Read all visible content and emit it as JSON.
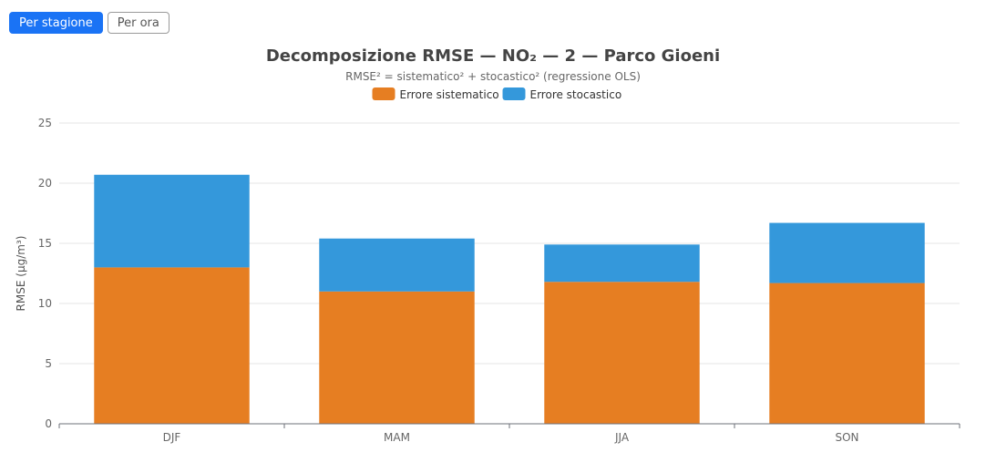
{
  "toggles": [
    {
      "label": "Per stagione",
      "active": true
    },
    {
      "label": "Per ora",
      "active": false
    }
  ],
  "colors": {
    "systematic": "#e67e22",
    "stochastic": "#3498db",
    "active_toggle": "#1a73f5"
  },
  "chart_data": {
    "type": "bar",
    "stacked": true,
    "title": "Decomposizione RMSE — NO₂ — 2 — Parco Gioeni",
    "subtitle": "RMSE² = sistematico² + stocastico² (regressione OLS)",
    "xlabel": "",
    "ylabel": "RMSE (µg/m³)",
    "ylim": [
      0,
      25
    ],
    "yticks": [
      0,
      5,
      10,
      15,
      20,
      25
    ],
    "grid": true,
    "legend_position": "top-center",
    "categories": [
      "DJF",
      "MAM",
      "JJA",
      "SON"
    ],
    "series": [
      {
        "name": "Errore sistematico",
        "values": [
          13.0,
          11.0,
          11.8,
          11.7
        ]
      },
      {
        "name": "Errore stocastico",
        "values": [
          7.7,
          4.4,
          3.1,
          5.0
        ]
      }
    ]
  }
}
